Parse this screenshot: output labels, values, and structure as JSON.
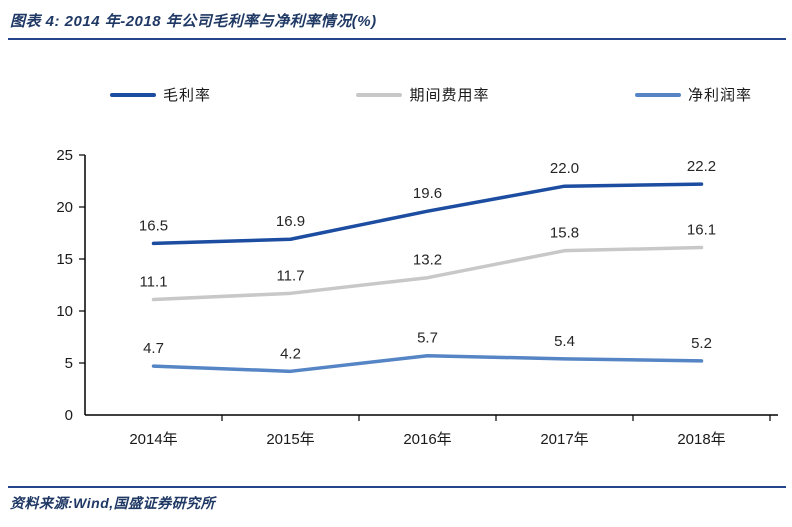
{
  "header": {
    "title": "图表 4: 2014 年-2018 年公司毛利率与净利率情况(%)"
  },
  "footer": {
    "source": "资料来源:Wind,国盛证券研究所"
  },
  "chart_data": {
    "type": "line",
    "title": "图表 4: 2014 年-2018 年公司毛利率与净利率情况(%)",
    "categories": [
      "2014年",
      "2015年",
      "2016年",
      "2017年",
      "2018年"
    ],
    "series": [
      {
        "name": "毛利率",
        "color": "#1C4DA1",
        "values": [
          16.5,
          16.9,
          19.6,
          22.0,
          22.2
        ]
      },
      {
        "name": "期间费用率",
        "color": "#C8C8C8",
        "values": [
          11.1,
          11.7,
          13.2,
          15.8,
          16.1
        ]
      },
      {
        "name": "净利润率",
        "color": "#5585C5",
        "values": [
          4.7,
          4.2,
          5.7,
          5.4,
          5.2
        ]
      }
    ],
    "xlabel": "",
    "ylabel": "",
    "ylim": [
      0,
      25
    ],
    "ytick_step": 5,
    "yticks": [
      0,
      5,
      10,
      15,
      20,
      25
    ],
    "grid": false,
    "legend_position": "top",
    "data_labels": true,
    "axis_color": "#000000"
  }
}
